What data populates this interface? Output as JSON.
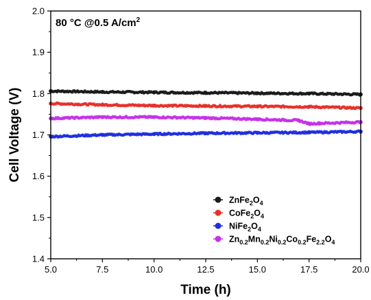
{
  "chart_data": {
    "type": "line",
    "title": "",
    "annotation": {
      "main": "80 °C @0.5 A/cm",
      "sup": "2"
    },
    "xlabel": "Time (h)",
    "ylabel": "Cell Voltage (V)",
    "xlim": [
      5.0,
      20.0
    ],
    "ylim": [
      1.4,
      2.0
    ],
    "xticks": [
      "5.0",
      "7.5",
      "10.0",
      "12.5",
      "15.0",
      "17.5",
      "20.0"
    ],
    "yticks": [
      "1.4",
      "1.5",
      "1.6",
      "1.7",
      "1.8",
      "1.9",
      "2.0"
    ],
    "legend_position": "bottom-right",
    "grid": false,
    "series": [
      {
        "name_parts": [
          [
            "ZnFe",
            ""
          ],
          [
            "2",
            "sub"
          ],
          [
            "O",
            ""
          ],
          [
            "4",
            "sub"
          ]
        ],
        "color": "#1a1a1a",
        "points": [
          [
            5.0,
            1.806
          ],
          [
            7.5,
            1.804
          ],
          [
            10.0,
            1.803
          ],
          [
            12.5,
            1.802
          ],
          [
            15.0,
            1.801
          ],
          [
            17.5,
            1.8
          ],
          [
            20.0,
            1.798
          ]
        ]
      },
      {
        "name_parts": [
          [
            "CoFe",
            ""
          ],
          [
            "2",
            "sub"
          ],
          [
            "O",
            ""
          ],
          [
            "4",
            "sub"
          ]
        ],
        "color": "#e8302a",
        "points": [
          [
            5.0,
            1.776
          ],
          [
            7.5,
            1.773
          ],
          [
            10.0,
            1.771
          ],
          [
            12.5,
            1.77
          ],
          [
            15.0,
            1.769
          ],
          [
            17.5,
            1.768
          ],
          [
            20.0,
            1.765
          ]
        ]
      },
      {
        "name_parts": [
          [
            "NiFe",
            ""
          ],
          [
            "2",
            "sub"
          ],
          [
            "O",
            ""
          ],
          [
            "4",
            "sub"
          ]
        ],
        "color": "#1f2ee0",
        "points": [
          [
            5.0,
            1.696
          ],
          [
            7.5,
            1.7
          ],
          [
            10.0,
            1.702
          ],
          [
            12.5,
            1.704
          ],
          [
            15.0,
            1.705
          ],
          [
            17.5,
            1.706
          ],
          [
            20.0,
            1.708
          ]
        ]
      },
      {
        "name_parts": [
          [
            "Zn",
            ""
          ],
          [
            "0.2",
            "sub"
          ],
          [
            "Mn",
            ""
          ],
          [
            "0.2",
            "sub"
          ],
          [
            "Ni",
            ""
          ],
          [
            "0.2",
            "sub"
          ],
          [
            "Co",
            ""
          ],
          [
            "0.2",
            "sub"
          ],
          [
            "Fe",
            ""
          ],
          [
            "2.2",
            "sub"
          ],
          [
            "O",
            ""
          ],
          [
            "4",
            "sub"
          ]
        ],
        "color": "#c531ea",
        "points": [
          [
            5.0,
            1.74
          ],
          [
            7.5,
            1.743
          ],
          [
            10.0,
            1.743
          ],
          [
            12.5,
            1.741
          ],
          [
            15.0,
            1.738
          ],
          [
            17.0,
            1.735
          ],
          [
            17.5,
            1.727
          ],
          [
            18.0,
            1.728
          ],
          [
            20.0,
            1.731
          ]
        ]
      }
    ]
  }
}
